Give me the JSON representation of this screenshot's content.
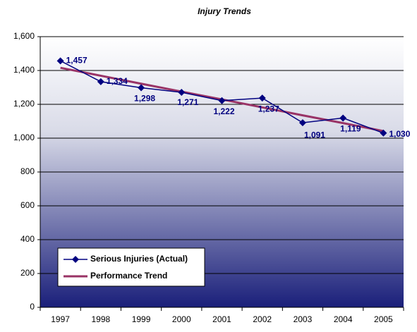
{
  "chart_data": {
    "type": "line",
    "title": "Injury Trends",
    "categories": [
      "1997",
      "1998",
      "1999",
      "2000",
      "2001",
      "2002",
      "2003",
      "2004",
      "2005"
    ],
    "series": [
      {
        "name": "Serious Injuries (Actual)",
        "color": "#000080",
        "values": [
          1457,
          1334,
          1298,
          1271,
          1222,
          1237,
          1091,
          1119,
          1030
        ],
        "value_labels": [
          "1,457",
          "1,334",
          "1,298",
          "1,271",
          "1,222",
          "1,237",
          "1,091",
          "1,119",
          "1,030"
        ]
      },
      {
        "name": "Performance Trend",
        "color": "#993366",
        "values": [
          1416,
          1369,
          1322,
          1275,
          1229,
          1182,
          1135,
          1089,
          1042
        ]
      }
    ],
    "ylim": [
      0,
      1600
    ],
    "yticks": [
      0,
      200,
      400,
      600,
      800,
      {
        "value": 1000,
        "label": "1,000"
      },
      {
        "value": 1200,
        "label": "1,200"
      },
      {
        "value": 1400,
        "label": "1,400"
      },
      {
        "value": 1600,
        "label": "1,600"
      }
    ],
    "grid": true,
    "legend": "lower-left"
  }
}
